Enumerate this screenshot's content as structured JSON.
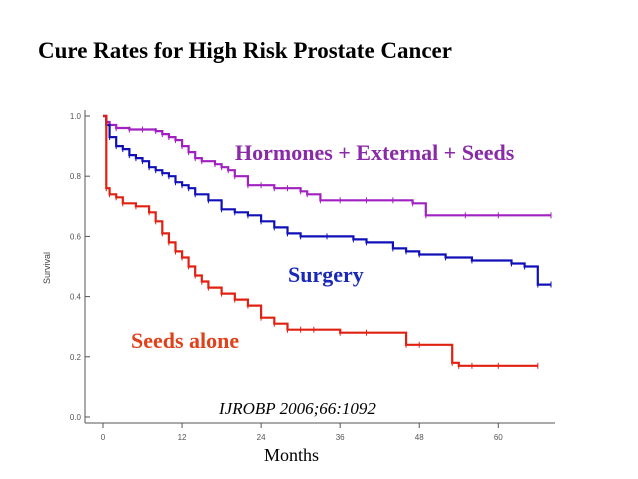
{
  "title": "Cure Rates for High Risk Prostate Cancer",
  "chart_data": {
    "type": "line",
    "subtype": "kaplan-meier",
    "title": "Cure Rates for High Risk Prostate Cancer",
    "xlabel": "Months",
    "ylabel": "Survival",
    "xlim": [
      0,
      68
    ],
    "ylim": [
      0,
      1.0
    ],
    "xticks": [
      "0",
      "12",
      "24",
      "36",
      "48",
      "60"
    ],
    "xtick_values": [
      0,
      12,
      24,
      36,
      48,
      60
    ],
    "yticks": [
      "0.0",
      "0.2",
      "0.4",
      "0.6",
      "0.8",
      "1.0"
    ],
    "ytick_values": [
      0,
      0.2,
      0.4,
      0.6,
      0.8,
      1.0
    ],
    "citation": "IJROBP 2006;66:1092",
    "series": [
      {
        "name": "Hormones + External + Seeds",
        "color": "#a020c0",
        "x": [
          0,
          0.5,
          1,
          2,
          4,
          6,
          8,
          9,
          10,
          11,
          12,
          13,
          14,
          15,
          17,
          18,
          19,
          20,
          22,
          24,
          26,
          28,
          30,
          31,
          33,
          36,
          40,
          44,
          47,
          49,
          55,
          60,
          68
        ],
        "y": [
          1.0,
          0.98,
          0.97,
          0.96,
          0.955,
          0.955,
          0.95,
          0.94,
          0.93,
          0.92,
          0.9,
          0.88,
          0.86,
          0.85,
          0.84,
          0.83,
          0.82,
          0.8,
          0.77,
          0.77,
          0.76,
          0.76,
          0.75,
          0.74,
          0.72,
          0.72,
          0.72,
          0.72,
          0.71,
          0.67,
          0.67,
          0.67,
          0.67
        ]
      },
      {
        "name": "Surgery",
        "color": "#1010b8",
        "x": [
          0,
          0.5,
          1,
          2,
          3,
          4,
          5,
          6,
          7,
          8,
          9,
          10,
          11,
          12,
          13,
          14,
          16,
          18,
          20,
          22,
          24,
          26,
          28,
          30,
          34,
          38,
          40,
          44,
          46,
          48,
          52,
          56,
          62,
          64,
          66,
          68
        ],
        "y": [
          1.0,
          0.97,
          0.93,
          0.9,
          0.89,
          0.87,
          0.86,
          0.85,
          0.83,
          0.82,
          0.81,
          0.8,
          0.78,
          0.77,
          0.76,
          0.74,
          0.72,
          0.69,
          0.68,
          0.67,
          0.65,
          0.63,
          0.61,
          0.6,
          0.6,
          0.59,
          0.58,
          0.56,
          0.55,
          0.54,
          0.53,
          0.52,
          0.51,
          0.5,
          0.44,
          0.44
        ]
      },
      {
        "name": "Seeds alone",
        "color": "#e02010",
        "x": [
          0,
          0.5,
          1,
          2,
          3,
          5,
          7,
          8,
          9,
          10,
          11,
          12,
          13,
          14,
          15,
          16,
          18,
          20,
          22,
          24,
          26,
          28,
          30,
          32,
          36,
          40,
          46,
          48,
          53,
          54,
          56,
          60,
          66
        ],
        "y": [
          1.0,
          0.76,
          0.74,
          0.73,
          0.71,
          0.7,
          0.68,
          0.65,
          0.61,
          0.58,
          0.55,
          0.53,
          0.5,
          0.47,
          0.45,
          0.43,
          0.41,
          0.39,
          0.37,
          0.33,
          0.31,
          0.29,
          0.29,
          0.29,
          0.28,
          0.28,
          0.24,
          0.24,
          0.18,
          0.17,
          0.17,
          0.17,
          0.17
        ]
      }
    ]
  }
}
